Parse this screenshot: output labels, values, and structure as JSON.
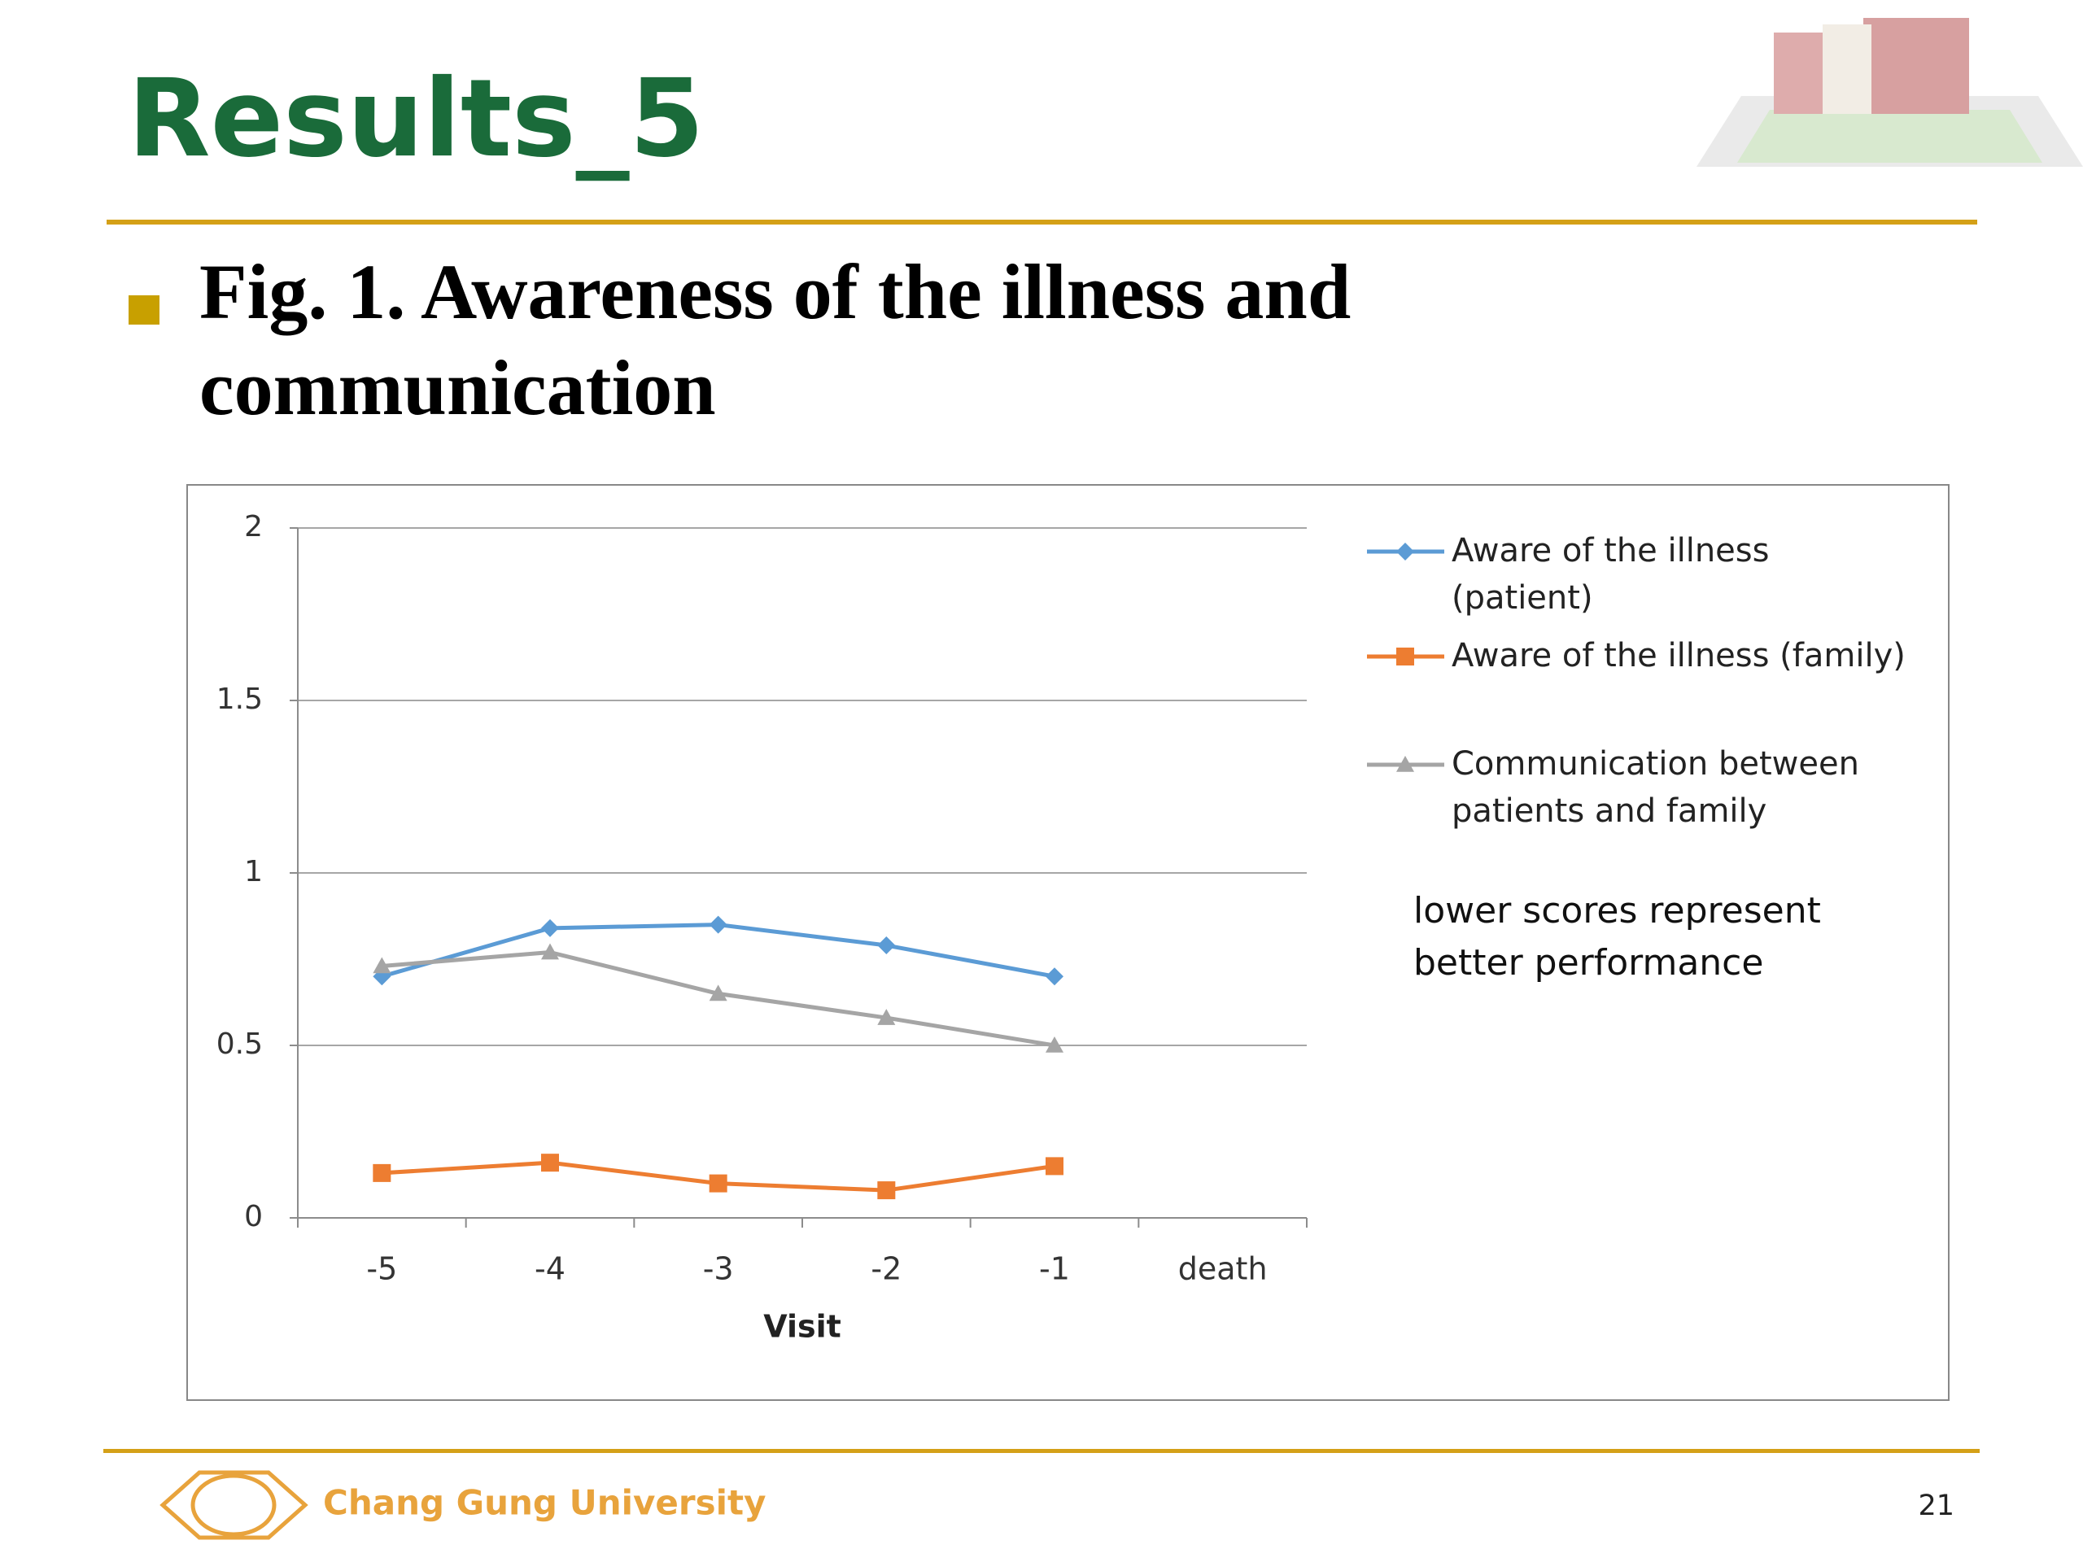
{
  "title": "Results_5",
  "bullet": "Fig. 1. Awareness of the illness and communication",
  "footer": {
    "university": "Chang Gung University",
    "page": "21"
  },
  "chart_data": {
    "type": "line",
    "categories": [
      "-5",
      "-4",
      "-3",
      "-2",
      "-1",
      "death"
    ],
    "series": [
      {
        "name": "Aware of the illness (patient)",
        "color": "#5b9bd5",
        "marker": "diamond",
        "values": [
          0.7,
          0.84,
          0.85,
          0.79,
          0.7,
          null
        ]
      },
      {
        "name": "Aware of the illness (family)",
        "color": "#ed7d31",
        "marker": "square",
        "values": [
          0.13,
          0.16,
          0.1,
          0.08,
          0.15,
          null
        ]
      },
      {
        "name": "Communication between patients and family",
        "color": "#a5a5a5",
        "marker": "triangle",
        "values": [
          0.73,
          0.77,
          0.65,
          0.58,
          0.5,
          null
        ]
      }
    ],
    "x_label": "Visit",
    "annotation": "lower scores represent better performance",
    "ylim": [
      0,
      2
    ],
    "yticks": [
      0,
      0.5,
      1,
      1.5,
      2
    ],
    "grid": true,
    "legend_position": "right"
  }
}
